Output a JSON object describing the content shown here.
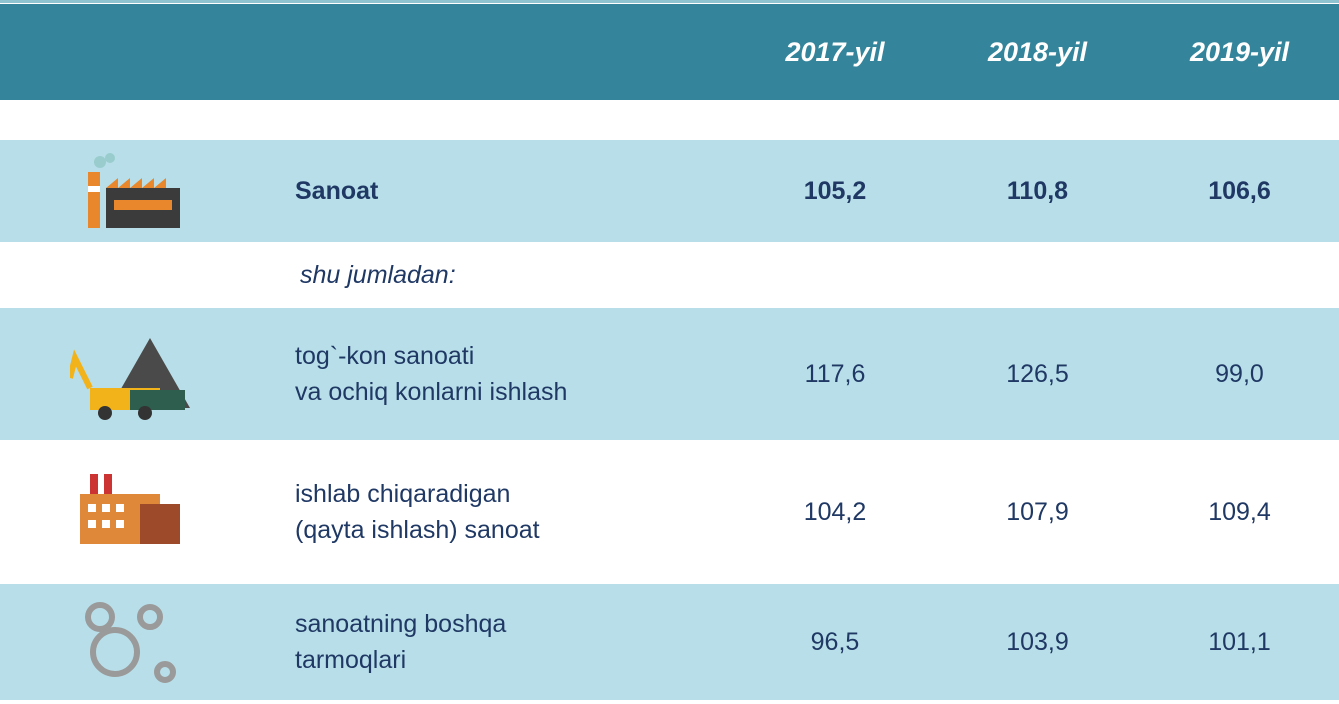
{
  "table": {
    "header": [
      "2017-yil",
      "2018-yil",
      "2019-yil"
    ],
    "total": {
      "label": "Sanoat",
      "values": [
        "105,2",
        "110,8",
        "106,6"
      ]
    },
    "subheading": "shu jumladan:",
    "rows": [
      {
        "label": [
          "tog`-kon sanoati",
          "va ochiq konlarni ishlash"
        ],
        "values": [
          "117,6",
          "126,5",
          "99,0"
        ]
      },
      {
        "label": [
          "ishlab chiqaradigan",
          "(qayta ishlash) sanoat"
        ],
        "values": [
          "104,2",
          "107,9",
          "109,4"
        ]
      },
      {
        "label": [
          "sanoatning boshqa",
          "tarmoqlari"
        ],
        "values": [
          "96,5",
          "103,9",
          "101,1"
        ]
      }
    ]
  }
}
